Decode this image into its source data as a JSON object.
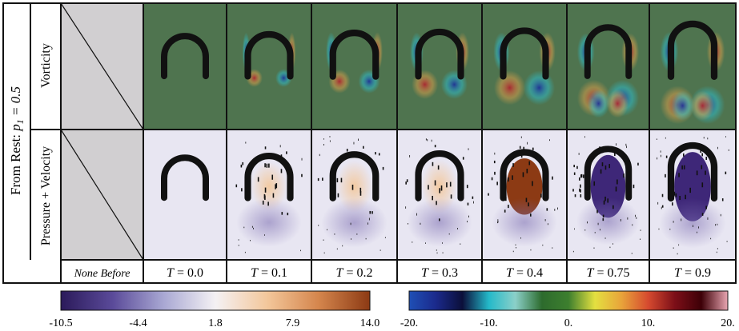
{
  "figure": {
    "row_group_label": "From Rest: ",
    "row_group_param_name": "p",
    "row_group_param_sub": "1",
    "row_group_param_value": " = 0.5",
    "rows": [
      {
        "label": "Vorticity",
        "kind": "vorticity"
      },
      {
        "label": "Pressure + Velocity",
        "kind": "pressure"
      }
    ],
    "columns": [
      {
        "caption_plain": "None Before",
        "t_prefix": "",
        "t_value": "",
        "is_none": true
      },
      {
        "caption_plain": "",
        "t_prefix": "T",
        "t_value": " = 0.0",
        "is_none": false,
        "time": 0.0
      },
      {
        "caption_plain": "",
        "t_prefix": "T",
        "t_value": " = 0.1",
        "is_none": false,
        "time": 0.1
      },
      {
        "caption_plain": "",
        "t_prefix": "T",
        "t_value": " = 0.2",
        "is_none": false,
        "time": 0.2
      },
      {
        "caption_plain": "",
        "t_prefix": "T",
        "t_value": " = 0.3",
        "is_none": false,
        "time": 0.3
      },
      {
        "caption_plain": "",
        "t_prefix": "T",
        "t_value": " = 0.4",
        "is_none": false,
        "time": 0.4
      },
      {
        "caption_plain": "",
        "t_prefix": "T",
        "t_value": " = 0.75",
        "is_none": false,
        "time": 0.75
      },
      {
        "caption_plain": "",
        "t_prefix": "T",
        "t_value": " = 0.9",
        "is_none": false,
        "time": 0.9
      }
    ]
  },
  "colorbars": [
    {
      "name": "pressure",
      "ticks": [
        "-10.5",
        "-4.4",
        "1.8",
        "7.9",
        "14.0"
      ],
      "colors": [
        "#2b1a5a",
        "#5a4a99",
        "#a9a8d3",
        "#f4f1f4",
        "#f3c79b",
        "#d5864d",
        "#8c3a14"
      ]
    },
    {
      "name": "vorticity",
      "ticks": [
        "-20.",
        "-10.",
        "0.",
        "10.",
        "20."
      ],
      "colors": [
        "#1f4fb5",
        "#1b2a8c",
        "#0b0f3a",
        "#24b9c9",
        "#8bd0c9",
        "#2d6b2d",
        "#3d7f2e",
        "#e4e040",
        "#e8a33a",
        "#d64a2f",
        "#7d0f18",
        "#3d0007",
        "#e9a6b2"
      ]
    }
  ],
  "colors": {
    "vorticity_bg": "#4f744f",
    "pressure_bg": "#e8e6f2",
    "placeholder_bg": "#d1cfd1",
    "body": "#111111"
  }
}
